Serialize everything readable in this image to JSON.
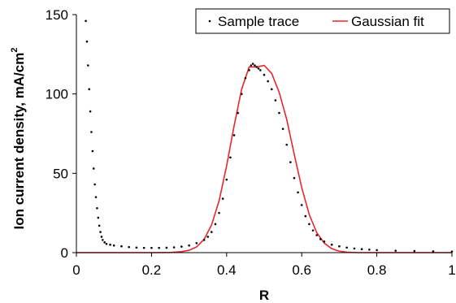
{
  "chart_data": {
    "type": "scatter",
    "xlabel": "R",
    "ylabel_main": "Ion current density, mA/cm",
    "ylabel_sup": "2",
    "xlim": [
      0,
      1
    ],
    "ylim": [
      0,
      150
    ],
    "x_ticks": [
      "0",
      "0.2",
      "0.4",
      "0.6",
      "0.8",
      "1"
    ],
    "y_ticks": [
      "0",
      "50",
      "100",
      "150"
    ],
    "grid": false,
    "legend_position": "top-right",
    "series": [
      {
        "name": "Sample trace",
        "style": "dots",
        "color": "#000000",
        "x": [
          0.025,
          0.028,
          0.031,
          0.034,
          0.037,
          0.04,
          0.043,
          0.046,
          0.049,
          0.052,
          0.055,
          0.058,
          0.061,
          0.064,
          0.067,
          0.07,
          0.075,
          0.08,
          0.09,
          0.1,
          0.12,
          0.14,
          0.16,
          0.18,
          0.2,
          0.22,
          0.24,
          0.26,
          0.28,
          0.3,
          0.32,
          0.34,
          0.35,
          0.36,
          0.37,
          0.38,
          0.39,
          0.4,
          0.41,
          0.42,
          0.43,
          0.44,
          0.45,
          0.46,
          0.465,
          0.47,
          0.475,
          0.48,
          0.485,
          0.49,
          0.5,
          0.51,
          0.52,
          0.53,
          0.54,
          0.55,
          0.56,
          0.57,
          0.58,
          0.59,
          0.6,
          0.61,
          0.62,
          0.63,
          0.64,
          0.65,
          0.66,
          0.68,
          0.7,
          0.72,
          0.74,
          0.76,
          0.78,
          0.8,
          0.85,
          0.9,
          0.95,
          1.0
        ],
        "y": [
          146,
          133,
          118,
          103,
          89,
          76,
          64,
          53,
          43,
          35,
          28,
          22,
          17,
          13,
          10,
          8,
          6.5,
          5.5,
          5,
          4.5,
          4,
          3.5,
          3.2,
          3,
          3,
          3,
          3.1,
          3.3,
          3.8,
          4.5,
          6,
          8,
          10,
          13,
          18,
          25,
          34,
          46,
          60,
          74,
          88,
          100,
          110,
          115,
          118,
          119,
          118,
          117,
          116,
          115,
          112,
          108,
          103,
          96,
          88,
          78,
          68,
          57,
          47,
          38,
          30,
          23,
          18,
          14,
          11,
          8.5,
          7,
          5,
          4,
          3.2,
          2.6,
          2.2,
          1.9,
          1.6,
          1.2,
          1,
          0.8,
          0.7
        ]
      },
      {
        "name": "Gaussian fit",
        "style": "line",
        "color": "#e8262b",
        "x": [
          0.0,
          0.05,
          0.1,
          0.15,
          0.2,
          0.25,
          0.28,
          0.3,
          0.32,
          0.34,
          0.36,
          0.38,
          0.4,
          0.42,
          0.44,
          0.46,
          0.48,
          0.5,
          0.52,
          0.54,
          0.56,
          0.58,
          0.6,
          0.62,
          0.64,
          0.66,
          0.68,
          0.7,
          0.72,
          0.75,
          0.8,
          0.85,
          0.9,
          0.95,
          1.0
        ],
        "y": [
          0,
          0,
          0,
          0,
          0,
          0.1,
          0.6,
          1.5,
          3.6,
          8.4,
          17.5,
          32.7,
          54.7,
          80,
          103,
          117,
          117,
          118,
          113,
          101,
          84,
          62,
          41,
          24,
          12.6,
          6,
          2.5,
          0.9,
          0.3,
          0,
          0,
          0,
          0,
          0,
          0
        ]
      }
    ]
  }
}
